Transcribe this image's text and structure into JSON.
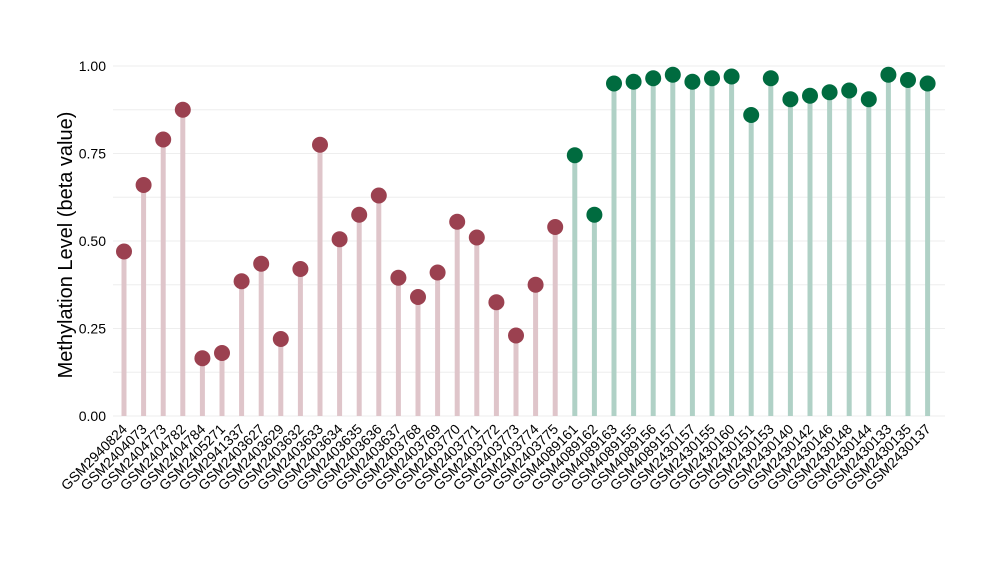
{
  "chart_data": {
    "type": "lollipop",
    "title": "",
    "xlabel": "",
    "ylabel": "Methylation Level (beta value)",
    "ylim": [
      0,
      1
    ],
    "yticks": [
      "0.00",
      "0.25",
      "0.50",
      "0.75",
      "1.00"
    ],
    "grid": true,
    "legend": "none",
    "colors": {
      "group_a_point": "#9b4150",
      "group_a_stem": "#dfc5ca",
      "group_b_point": "#006b3f",
      "group_b_stem": "#b0d1c6",
      "grid": "#eeeeee"
    },
    "categories": [
      "GSM2940824",
      "GSM2404073",
      "GSM2404773",
      "GSM2404782",
      "GSM2404784",
      "GSM2405271",
      "GSM2941337",
      "GSM2403627",
      "GSM2403629",
      "GSM2403632",
      "GSM2403633",
      "GSM2403634",
      "GSM2403635",
      "GSM2403636",
      "GSM2403637",
      "GSM2403768",
      "GSM2403769",
      "GSM2403770",
      "GSM2403771",
      "GSM2403772",
      "GSM2403773",
      "GSM2403774",
      "GSM2403775",
      "GSM4089161",
      "GSM4089162",
      "GSM4089163",
      "GSM4089155",
      "GSM4089156",
      "GSM4089157",
      "GSM2430157",
      "GSM2430155",
      "GSM2430160",
      "GSM2430151",
      "GSM2430153",
      "GSM2430140",
      "GSM2430142",
      "GSM2430146",
      "GSM2430148",
      "GSM2430144",
      "GSM2430133",
      "GSM2430135",
      "GSM2430137"
    ],
    "values": [
      0.47,
      0.66,
      0.79,
      0.875,
      0.165,
      0.18,
      0.385,
      0.435,
      0.22,
      0.42,
      0.775,
      0.505,
      0.575,
      0.63,
      0.395,
      0.34,
      0.41,
      0.555,
      0.51,
      0.325,
      0.23,
      0.375,
      0.54,
      0.745,
      0.575,
      0.95,
      0.955,
      0.965,
      0.975,
      0.955,
      0.965,
      0.97,
      0.86,
      0.965,
      0.905,
      0.915,
      0.925,
      0.93,
      0.905,
      0.975,
      0.96,
      0.95
    ],
    "groups": [
      "a",
      "a",
      "a",
      "a",
      "a",
      "a",
      "a",
      "a",
      "a",
      "a",
      "a",
      "a",
      "a",
      "a",
      "a",
      "a",
      "a",
      "a",
      "a",
      "a",
      "a",
      "a",
      "a",
      "b",
      "b",
      "b",
      "b",
      "b",
      "b",
      "b",
      "b",
      "b",
      "b",
      "b",
      "b",
      "b",
      "b",
      "b",
      "b",
      "b",
      "b",
      "b"
    ]
  }
}
